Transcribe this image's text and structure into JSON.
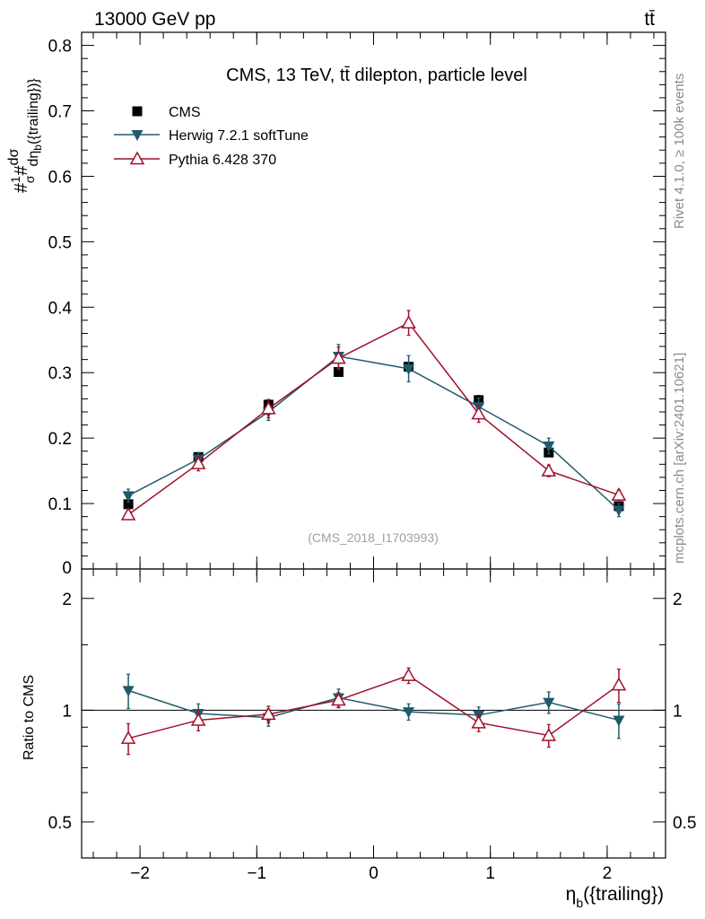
{
  "header": {
    "left_label": "13000 GeV pp",
    "right_label": "tt̄"
  },
  "side_labels": {
    "rivet": "Rivet 4.1.0, ≥ 100k events",
    "mcplots": "mcplots.cern.ch [arXiv:2401.10621]"
  },
  "colors": {
    "data": "#000000",
    "herwig": "#1f5a6b",
    "pythia": "#a0102a"
  },
  "chart_data": {
    "type": "line",
    "title": "CMS, 13 TeV, tt̄ dilepton, particle level",
    "watermark": "(CMS_2018_I1703993)",
    "xlabel": "η_b({trailing})",
    "ylabel": "#1/σ# dσ/dη_b({trailing})}",
    "ratio_ylabel": "Ratio to CMS",
    "xlim": [
      -2.5,
      2.5
    ],
    "ylim": [
      0,
      0.82
    ],
    "ratio_ylim": [
      0.4,
      2.4
    ],
    "x": [
      -2.1,
      -1.5,
      -0.9,
      -0.3,
      0.3,
      0.9,
      1.5,
      2.1
    ],
    "x_ticks": [
      "−2",
      "−1",
      "0",
      "1",
      "2"
    ],
    "y_ticks": [
      "0",
      "0.1",
      "0.2",
      "0.3",
      "0.4",
      "0.5",
      "0.6",
      "0.7",
      "0.8"
    ],
    "ratio_ticks": [
      "0.5",
      "1",
      "2"
    ],
    "legend": [
      "CMS",
      "Herwig 7.2.1 softTune",
      "Pythia 6.428 370"
    ],
    "series": [
      {
        "name": "CMS",
        "marker": "square",
        "values": [
          0.099,
          0.171,
          0.251,
          0.301,
          0.309,
          0.258,
          0.178,
          0.096
        ],
        "errors": [
          0.005,
          0.006,
          0.008,
          0.006,
          0.006,
          0.007,
          0.006,
          0.005
        ]
      },
      {
        "name": "Herwig 7.2.1 softTune",
        "marker": "triangle-down",
        "values": [
          0.112,
          0.168,
          0.24,
          0.325,
          0.306,
          0.248,
          0.188,
          0.09
        ],
        "errors": [
          0.01,
          0.01,
          0.013,
          0.018,
          0.02,
          0.013,
          0.012,
          0.01
        ]
      },
      {
        "name": "Pythia 6.428 370",
        "marker": "triangle-up",
        "values": [
          0.083,
          0.161,
          0.245,
          0.322,
          0.376,
          0.237,
          0.15,
          0.113
        ],
        "errors": [
          0.007,
          0.011,
          0.014,
          0.017,
          0.019,
          0.013,
          0.009,
          0.008
        ]
      }
    ],
    "ratio": [
      {
        "name": "Herwig 7.2.1 softTune",
        "values": [
          1.13,
          0.98,
          0.955,
          1.08,
          0.99,
          0.97,
          1.05,
          0.94
        ],
        "errors": [
          0.12,
          0.06,
          0.05,
          0.06,
          0.05,
          0.05,
          0.07,
          0.1
        ]
      },
      {
        "name": "Pythia 6.428 370",
        "values": [
          0.84,
          0.94,
          0.975,
          1.065,
          1.24,
          0.925,
          0.855,
          1.17
        ],
        "errors": [
          0.08,
          0.06,
          0.05,
          0.05,
          0.06,
          0.05,
          0.06,
          0.12
        ]
      }
    ]
  }
}
